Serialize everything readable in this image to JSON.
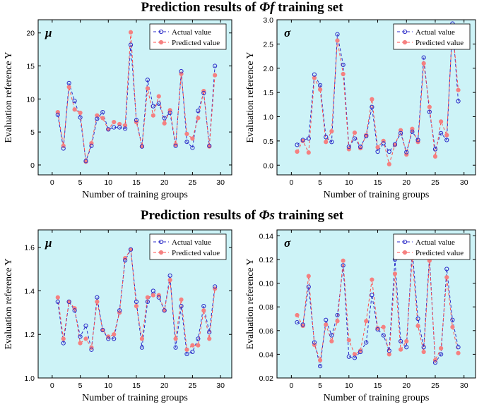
{
  "titles": {
    "top_prefix": "Prediction results of ",
    "top_symbol": "Φf",
    "top_suffix": " training set",
    "bottom_prefix": "Prediction results of ",
    "bottom_symbol": "Φs",
    "bottom_suffix": " training set"
  },
  "colors": {
    "background": "#cdf3f7",
    "actual": "#2b2bc8",
    "predicted": "#ff4d4d",
    "predicted_marker": "#f58080"
  },
  "chart_data": [
    {
      "type": "line",
      "panel_symbol": "μ",
      "xlabel": "Number of training groups",
      "ylabel": "Evaluation reference Y",
      "xlim": [
        -2.5,
        32
      ],
      "ylim": [
        -1.5,
        22
      ],
      "xticks": [
        0,
        5,
        10,
        15,
        20,
        25,
        30
      ],
      "yticks": [
        0,
        5,
        10,
        15,
        20
      ],
      "ytick_labels": [
        "0",
        "5",
        "10",
        "15",
        "20"
      ],
      "legend_placement": "top-right",
      "x": [
        1,
        2,
        3,
        4,
        5,
        6,
        7,
        8,
        9,
        10,
        11,
        12,
        13,
        14,
        15,
        16,
        17,
        18,
        19,
        20,
        21,
        22,
        23,
        24,
        25,
        26,
        27,
        28,
        29
      ],
      "series": [
        {
          "name": "Actual value",
          "values": [
            7.6,
            2.5,
            12.4,
            9.7,
            7.2,
            0.6,
            2.9,
            7.0,
            8.0,
            5.4,
            5.7,
            5.7,
            5.5,
            18.2,
            6.8,
            2.8,
            12.9,
            8.9,
            9.3,
            7.1,
            7.9,
            2.9,
            14.2,
            3.5,
            2.6,
            8.2,
            10.9,
            2.9,
            15.0
          ]
        },
        {
          "name": "Predicted value",
          "values": [
            8.0,
            2.9,
            11.8,
            8.4,
            7.9,
            0.5,
            3.3,
            7.5,
            7.1,
            5.4,
            6.5,
            6.2,
            6.0,
            20.1,
            6.5,
            2.8,
            11.6,
            7.5,
            10.4,
            6.3,
            8.3,
            3.1,
            13.8,
            4.7,
            4.0,
            7.1,
            11.2,
            2.8,
            13.6
          ]
        }
      ]
    },
    {
      "type": "line",
      "panel_symbol": "σ",
      "xlabel": "Number of training groups",
      "ylabel": "Evaluation reference Y",
      "xlim": [
        -2.5,
        32
      ],
      "ylim": [
        -0.2,
        3.0
      ],
      "xticks": [
        0,
        5,
        10,
        15,
        20,
        25,
        30
      ],
      "yticks": [
        0,
        0.5,
        1.0,
        1.5,
        2.0,
        2.5,
        3.0
      ],
      "ytick_labels": [
        "0.0",
        "0.5",
        "1.0",
        "1.5",
        "2.0",
        "2.5",
        "3.0"
      ],
      "legend_placement": "top-right",
      "x": [
        1,
        2,
        3,
        4,
        5,
        6,
        7,
        8,
        9,
        10,
        11,
        12,
        13,
        14,
        15,
        16,
        17,
        18,
        19,
        20,
        21,
        22,
        23,
        24,
        25,
        26,
        27,
        28,
        29
      ],
      "series": [
        {
          "name": "Actual value",
          "values": [
            0.42,
            0.52,
            0.55,
            1.87,
            1.65,
            0.58,
            0.48,
            2.7,
            2.07,
            0.38,
            0.55,
            0.38,
            0.6,
            1.2,
            0.28,
            0.45,
            0.28,
            0.43,
            0.66,
            0.27,
            0.69,
            0.52,
            2.22,
            1.1,
            0.33,
            0.66,
            0.52,
            2.92,
            1.32
          ]
        },
        {
          "name": "Predicted value",
          "values": [
            0.28,
            0.5,
            0.26,
            1.8,
            1.56,
            0.48,
            0.7,
            2.57,
            1.88,
            0.33,
            0.67,
            0.35,
            0.62,
            1.36,
            0.37,
            0.5,
            0.02,
            0.42,
            0.72,
            0.22,
            0.75,
            0.48,
            2.1,
            1.2,
            0.18,
            0.9,
            0.62,
            2.83,
            1.55
          ]
        }
      ]
    },
    {
      "type": "line",
      "panel_symbol": "μ",
      "xlabel": "Number of training groups",
      "ylabel": "Evaluation reference Y",
      "xlim": [
        -2.5,
        32
      ],
      "ylim": [
        1.0,
        1.68
      ],
      "xticks": [
        0,
        5,
        10,
        15,
        20,
        25,
        30
      ],
      "yticks": [
        1.0,
        1.2,
        1.4,
        1.6
      ],
      "ytick_labels": [
        "1.0",
        "1.2",
        "1.4",
        "1.6"
      ],
      "legend_placement": "top-right",
      "x": [
        1,
        2,
        3,
        4,
        5,
        6,
        7,
        8,
        9,
        10,
        11,
        12,
        13,
        14,
        15,
        16,
        17,
        18,
        19,
        20,
        21,
        22,
        23,
        24,
        25,
        26,
        27,
        28,
        29
      ],
      "series": [
        {
          "name": "Actual value",
          "values": [
            1.35,
            1.16,
            1.35,
            1.31,
            1.19,
            1.24,
            1.13,
            1.37,
            1.22,
            1.18,
            1.18,
            1.31,
            1.54,
            1.59,
            1.35,
            1.14,
            1.35,
            1.4,
            1.37,
            1.31,
            1.47,
            1.14,
            1.33,
            1.11,
            1.12,
            1.18,
            1.33,
            1.21,
            1.42
          ]
        },
        {
          "name": "Predicted value",
          "values": [
            1.37,
            1.18,
            1.35,
            1.32,
            1.16,
            1.18,
            1.14,
            1.35,
            1.22,
            1.19,
            1.2,
            1.3,
            1.55,
            1.59,
            1.33,
            1.18,
            1.37,
            1.38,
            1.38,
            1.31,
            1.45,
            1.18,
            1.36,
            1.13,
            1.15,
            1.15,
            1.31,
            1.18,
            1.41
          ]
        }
      ]
    },
    {
      "type": "line",
      "panel_symbol": "σ",
      "xlabel": "Number of training groups",
      "ylabel": "Evaluation reference Y",
      "xlim": [
        -2.5,
        32
      ],
      "ylim": [
        0.02,
        0.145
      ],
      "xticks": [
        0,
        5,
        10,
        15,
        20,
        25,
        30
      ],
      "yticks": [
        0.02,
        0.04,
        0.06,
        0.08,
        0.1,
        0.12,
        0.14
      ],
      "ytick_labels": [
        "0.02",
        "0.04",
        "0.06",
        "0.08",
        "0.10",
        "0.12",
        "0.14"
      ],
      "legend_placement": "top-right",
      "x": [
        1,
        2,
        3,
        4,
        5,
        6,
        7,
        8,
        9,
        10,
        11,
        12,
        13,
        14,
        15,
        16,
        17,
        18,
        19,
        20,
        21,
        22,
        23,
        24,
        25,
        26,
        27,
        28,
        29
      ],
      "series": [
        {
          "name": "Actual value",
          "values": [
            0.067,
            0.065,
            0.097,
            0.05,
            0.03,
            0.069,
            0.056,
            0.073,
            0.115,
            0.038,
            0.037,
            0.042,
            0.05,
            0.09,
            0.061,
            0.056,
            0.043,
            0.12,
            0.051,
            0.046,
            0.129,
            0.07,
            0.046,
            0.122,
            0.033,
            0.04,
            0.112,
            0.069,
            0.046
          ]
        },
        {
          "name": "Predicted value",
          "values": [
            0.073,
            0.064,
            0.106,
            0.048,
            0.035,
            0.065,
            0.051,
            0.068,
            0.119,
            0.052,
            0.04,
            0.043,
            0.068,
            0.103,
            0.062,
            0.063,
            0.04,
            0.108,
            0.044,
            0.051,
            0.121,
            0.064,
            0.042,
            0.119,
            0.035,
            0.045,
            0.105,
            0.063,
            0.041
          ]
        }
      ]
    }
  ]
}
